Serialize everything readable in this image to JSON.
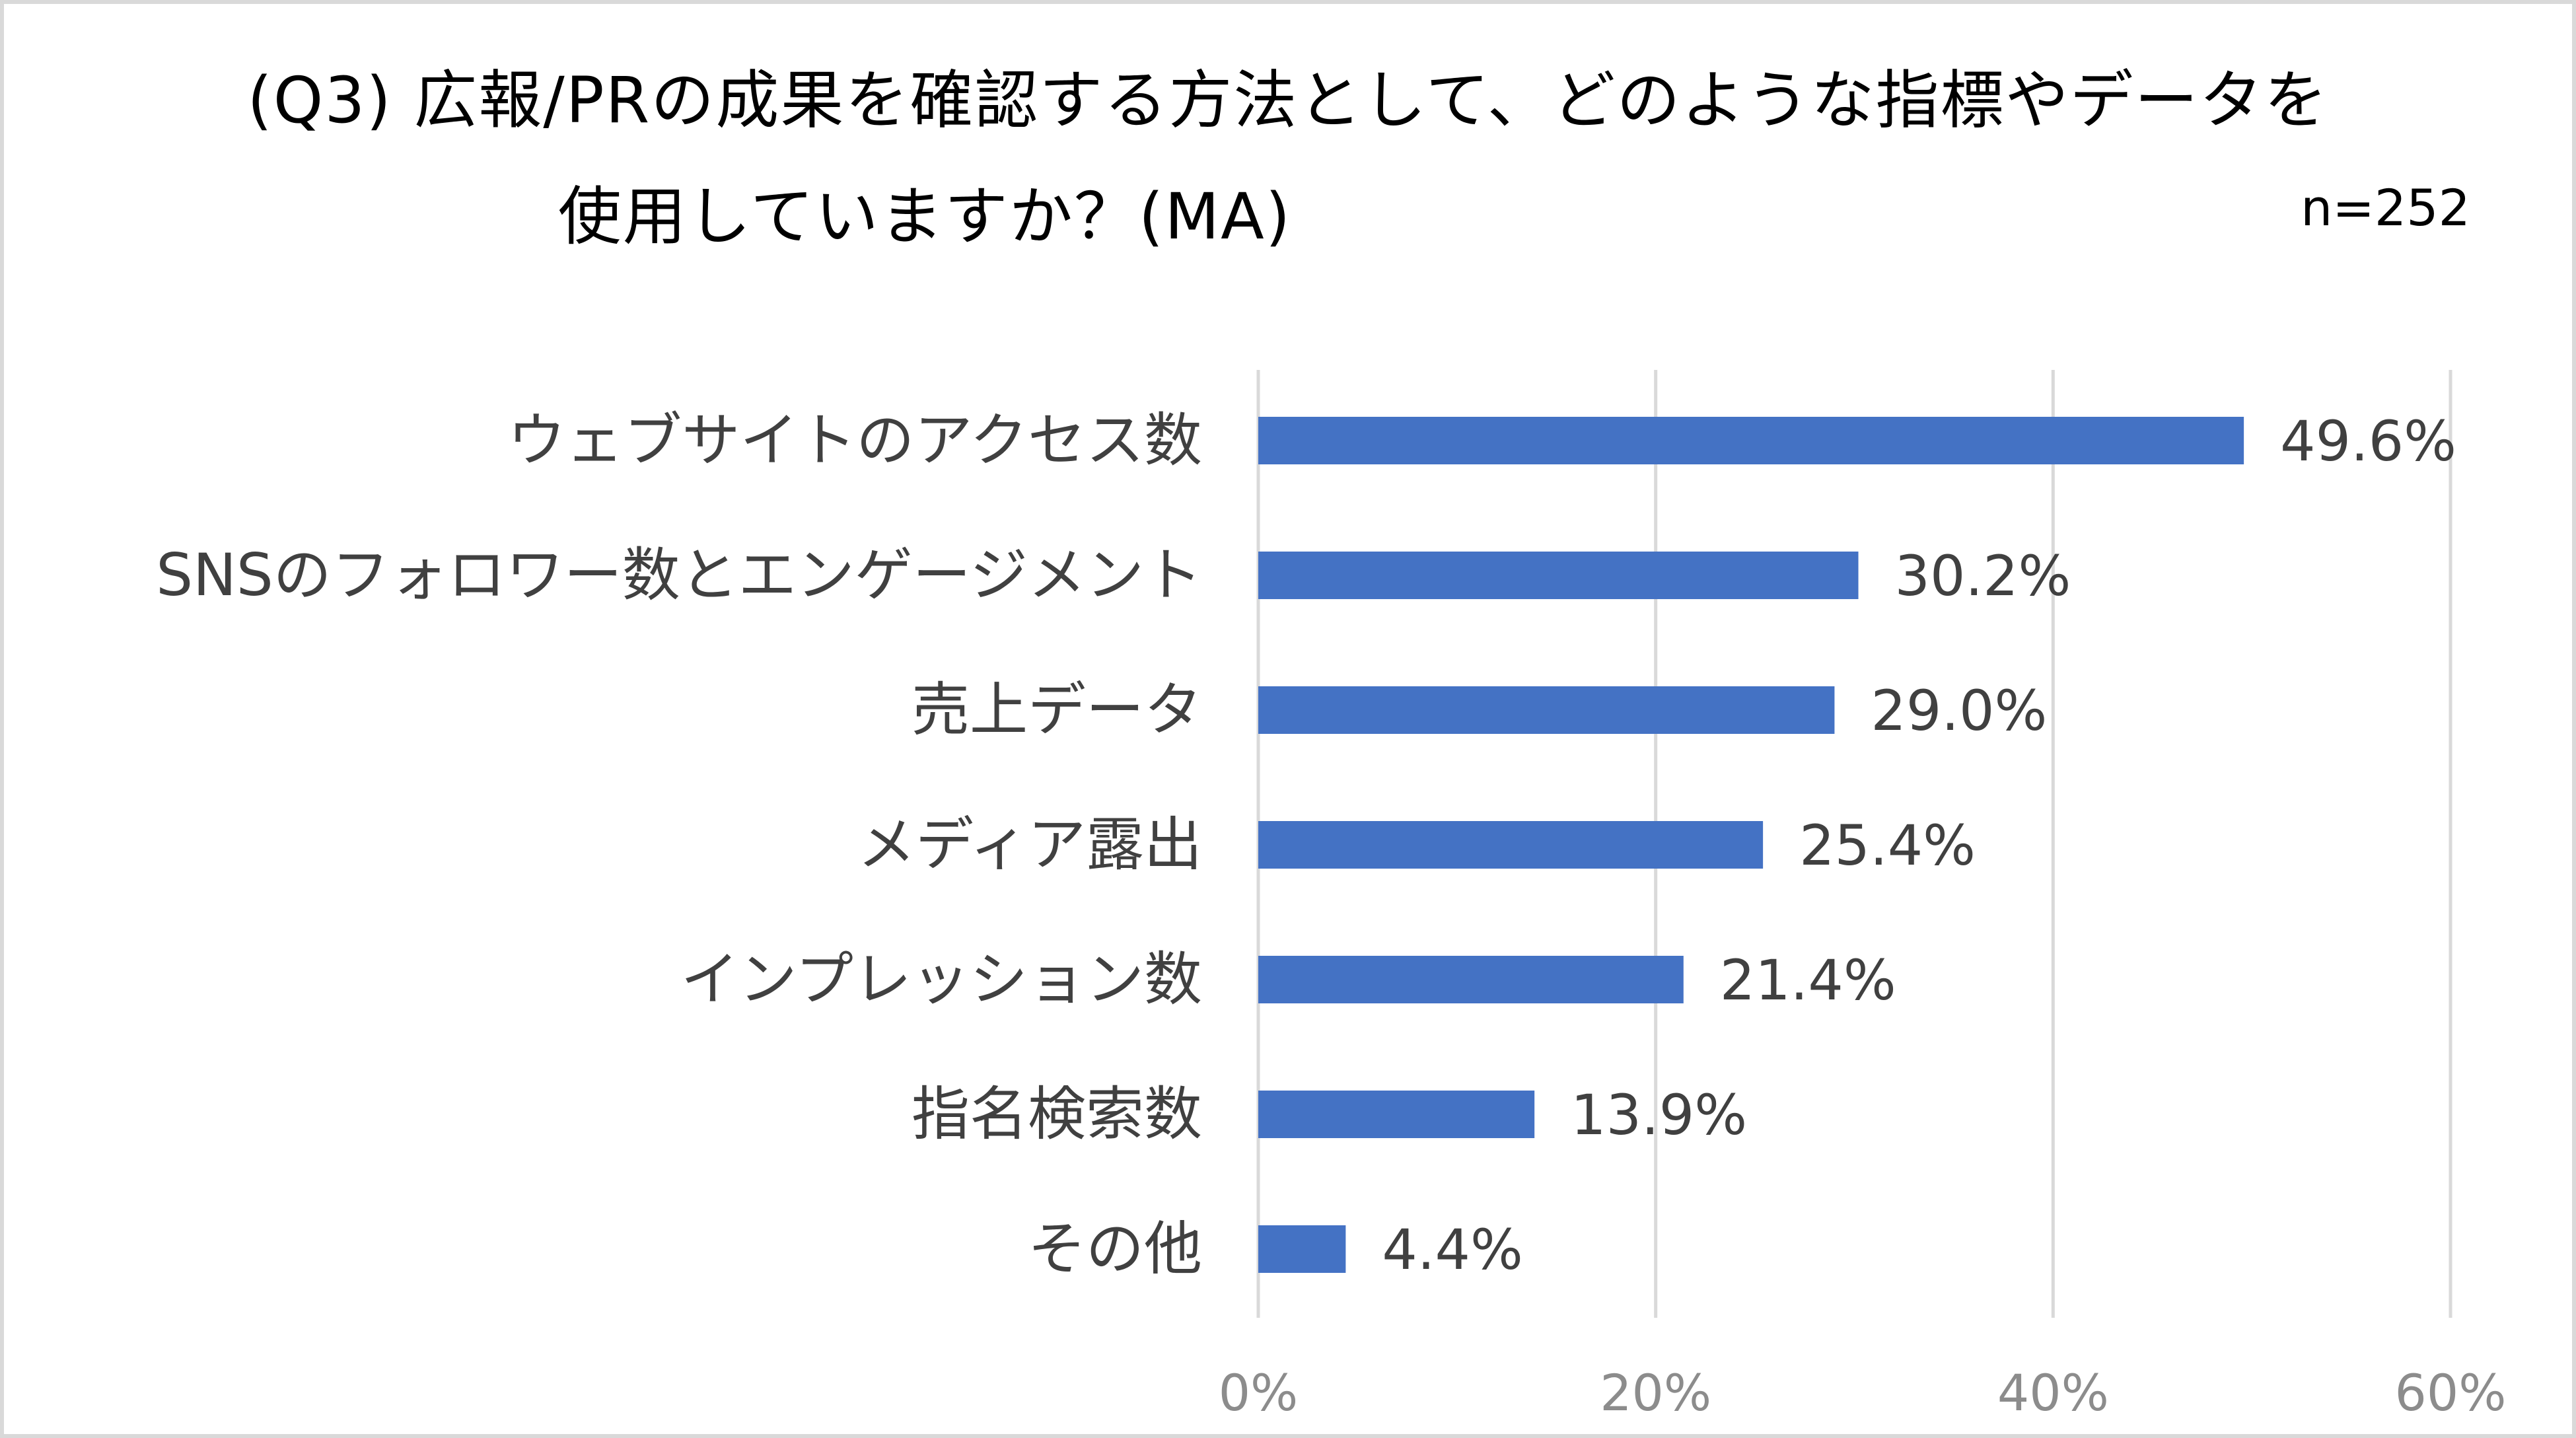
{
  "chart_data": {
    "type": "bar",
    "orientation": "horizontal",
    "title_line1": "(Q3) 広報/PRの成果を確認する方法として、どのような指標やデータを",
    "title_line2": "使用していますか？(MA)",
    "sample_size": "n=252",
    "categories": [
      "ウェブサイトのアクセス数",
      "SNSのフォロワー数とエンゲージメント",
      "売上データ",
      "メディア露出",
      "インプレッション数",
      "指名検索数",
      "その他"
    ],
    "values": [
      49.6,
      30.2,
      29.0,
      25.4,
      21.4,
      13.9,
      4.4
    ],
    "value_labels": [
      "49.6%",
      "30.2%",
      "29.0%",
      "25.4%",
      "21.4%",
      "13.9%",
      "4.4%"
    ],
    "x_ticks": [
      0,
      20,
      40,
      60
    ],
    "x_tick_labels": [
      "0%",
      "20%",
      "40%",
      "60%"
    ],
    "xlim": [
      0,
      60
    ],
    "grid": "vertical",
    "bar_color": "#4472c4",
    "grid_color": "#d9d9d9"
  }
}
